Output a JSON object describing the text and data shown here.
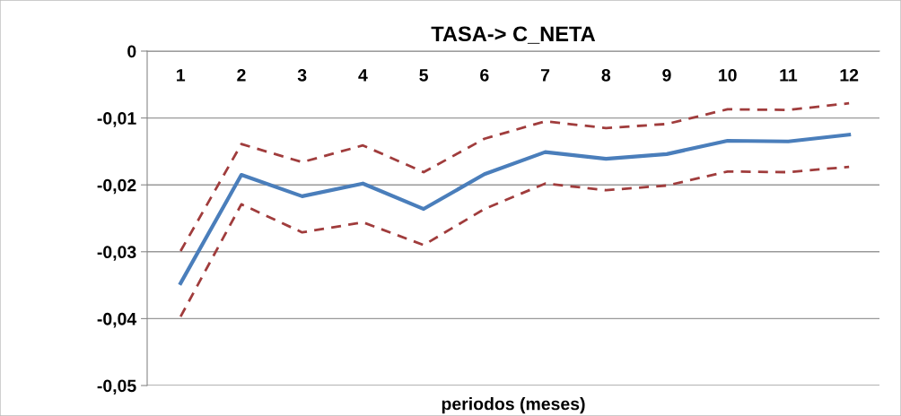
{
  "chart_data": {
    "type": "line",
    "title": "TASA-> C_NETA",
    "xlabel": "periodos (meses)",
    "categories": [
      "1",
      "2",
      "3",
      "4",
      "5",
      "6",
      "7",
      "8",
      "9",
      "10",
      "11",
      "12"
    ],
    "series": [
      {
        "color": "#4a7ebb",
        "line_style": "solid",
        "values": [
          -0.0347,
          -0.0185,
          -0.0217,
          -0.0198,
          -0.0236,
          -0.0184,
          -0.0151,
          -0.0161,
          -0.0154,
          -0.0134,
          -0.0135,
          -0.0125
        ]
      },
      {
        "color": "#a03c3c",
        "line_style": "dashed",
        "values": [
          -0.0299,
          -0.0139,
          -0.0166,
          -0.0141,
          -0.0181,
          -0.0131,
          -0.0105,
          -0.0115,
          -0.0109,
          -0.0087,
          -0.0088,
          -0.0078
        ]
      },
      {
        "color": "#a03c3c",
        "line_style": "dashed",
        "values": [
          -0.0397,
          -0.0229,
          -0.0271,
          -0.0256,
          -0.029,
          -0.0236,
          -0.0198,
          -0.0208,
          -0.0201,
          -0.018,
          -0.0181,
          -0.0173
        ]
      }
    ],
    "ylim": [
      -0.05,
      0
    ],
    "yticks": [
      {
        "value": -0.05,
        "label": "-0,05"
      },
      {
        "value": -0.04,
        "label": "-0,04"
      },
      {
        "value": -0.03,
        "label": "-0,03"
      },
      {
        "value": -0.02,
        "label": "-0,02"
      },
      {
        "value": -0.01,
        "label": "-0,01"
      },
      {
        "value": 0,
        "label": "0"
      }
    ],
    "grid": "y",
    "legend": false,
    "marker": "none"
  }
}
